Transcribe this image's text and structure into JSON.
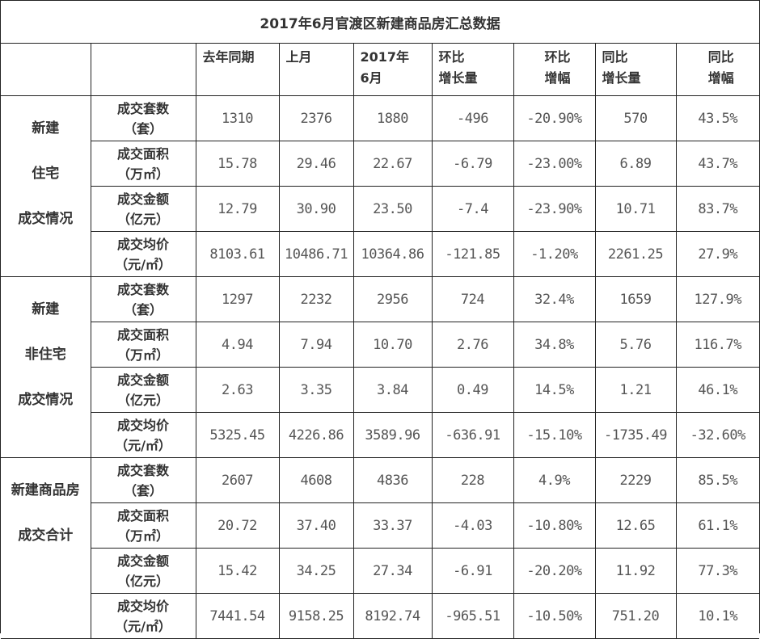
{
  "title": "2017年6月官渡区新建商品房汇总数据",
  "headers": [
    "",
    "",
    "去年同期",
    [
      "上月"
    ],
    [
      "2017年",
      "6月"
    ],
    [
      "环比",
      "增长量"
    ],
    [
      "环比",
      "增幅"
    ],
    [
      "同比",
      "增长量"
    ],
    [
      "同比",
      "增幅"
    ]
  ],
  "header_single": {
    "last_year": "去年同期",
    "last_month": "上月"
  },
  "header_two_line": {
    "june_1": "2017年",
    "june_2": "6月",
    "mom_inc_1": "环比",
    "mom_inc_2": "增长量",
    "mom_pct_1": "环比",
    "mom_pct_2": "增幅",
    "yoy_inc_1": "同比",
    "yoy_inc_2": "增长量",
    "yoy_pct_1": "同比",
    "yoy_pct_2": "增幅"
  },
  "groups": [
    {
      "label_lines": [
        "新建",
        "住宅",
        "成交情况"
      ],
      "rows": [
        {
          "metric": "成交套数",
          "unit": "（套）",
          "values": [
            "1310",
            "2376",
            "1880",
            "-496",
            "-20.90%",
            "570",
            "43.5%"
          ]
        },
        {
          "metric": "成交面积",
          "unit": "（万㎡）",
          "values": [
            "15.78",
            "29.46",
            "22.67",
            "-6.79",
            "-23.00%",
            "6.89",
            "43.7%"
          ]
        },
        {
          "metric": "成交金额",
          "unit": "（亿元）",
          "values": [
            "12.79",
            "30.90",
            "23.50",
            "-7.4",
            "-23.90%",
            "10.71",
            "83.7%"
          ]
        },
        {
          "metric": "成交均价",
          "unit": "（元/㎡）",
          "values": [
            "8103.61",
            "10486.71",
            "10364.86",
            "-121.85",
            "-1.20%",
            "2261.25",
            "27.9%"
          ]
        }
      ]
    },
    {
      "label_lines": [
        "新建",
        "非住宅",
        "成交情况"
      ],
      "rows": [
        {
          "metric": "成交套数",
          "unit": "（套）",
          "values": [
            "1297",
            "2232",
            "2956",
            "724",
            "32.4%",
            "1659",
            "127.9%"
          ]
        },
        {
          "metric": "成交面积",
          "unit": "（万㎡）",
          "values": [
            "4.94",
            "7.94",
            "10.70",
            "2.76",
            "34.8%",
            "5.76",
            "116.7%"
          ]
        },
        {
          "metric": "成交金额",
          "unit": "（亿元）",
          "values": [
            "2.63",
            "3.35",
            "3.84",
            "0.49",
            "14.5%",
            "1.21",
            "46.1%"
          ]
        },
        {
          "metric": "成交均价",
          "unit": "（元/㎡）",
          "values": [
            "5325.45",
            "4226.86",
            "3589.96",
            "-636.91",
            "-15.10%",
            "-1735.49",
            "-32.60%"
          ]
        }
      ]
    },
    {
      "label_lines": [
        "新建商品房",
        "成交合计"
      ],
      "rows": [
        {
          "metric": "成交套数",
          "unit": "（套）",
          "values": [
            "2607",
            "4608",
            "4836",
            "228",
            "4.9%",
            "2229",
            "85.5%"
          ]
        },
        {
          "metric": "成交面积",
          "unit": "（万㎡）",
          "values": [
            "20.72",
            "37.40",
            "33.37",
            "-4.03",
            "-10.80%",
            "12.65",
            "61.1%"
          ]
        },
        {
          "metric": "成交金额",
          "unit": "（亿元）",
          "values": [
            "15.42",
            "34.25",
            "27.34",
            "-6.91",
            "-20.20%",
            "11.92",
            "77.3%"
          ]
        },
        {
          "metric": "成交均价",
          "unit": "（元/㎡）",
          "values": [
            "7441.54",
            "9158.25",
            "8192.74",
            "-965.51",
            "-10.50%",
            "751.20",
            "10.1%"
          ]
        }
      ]
    }
  ]
}
